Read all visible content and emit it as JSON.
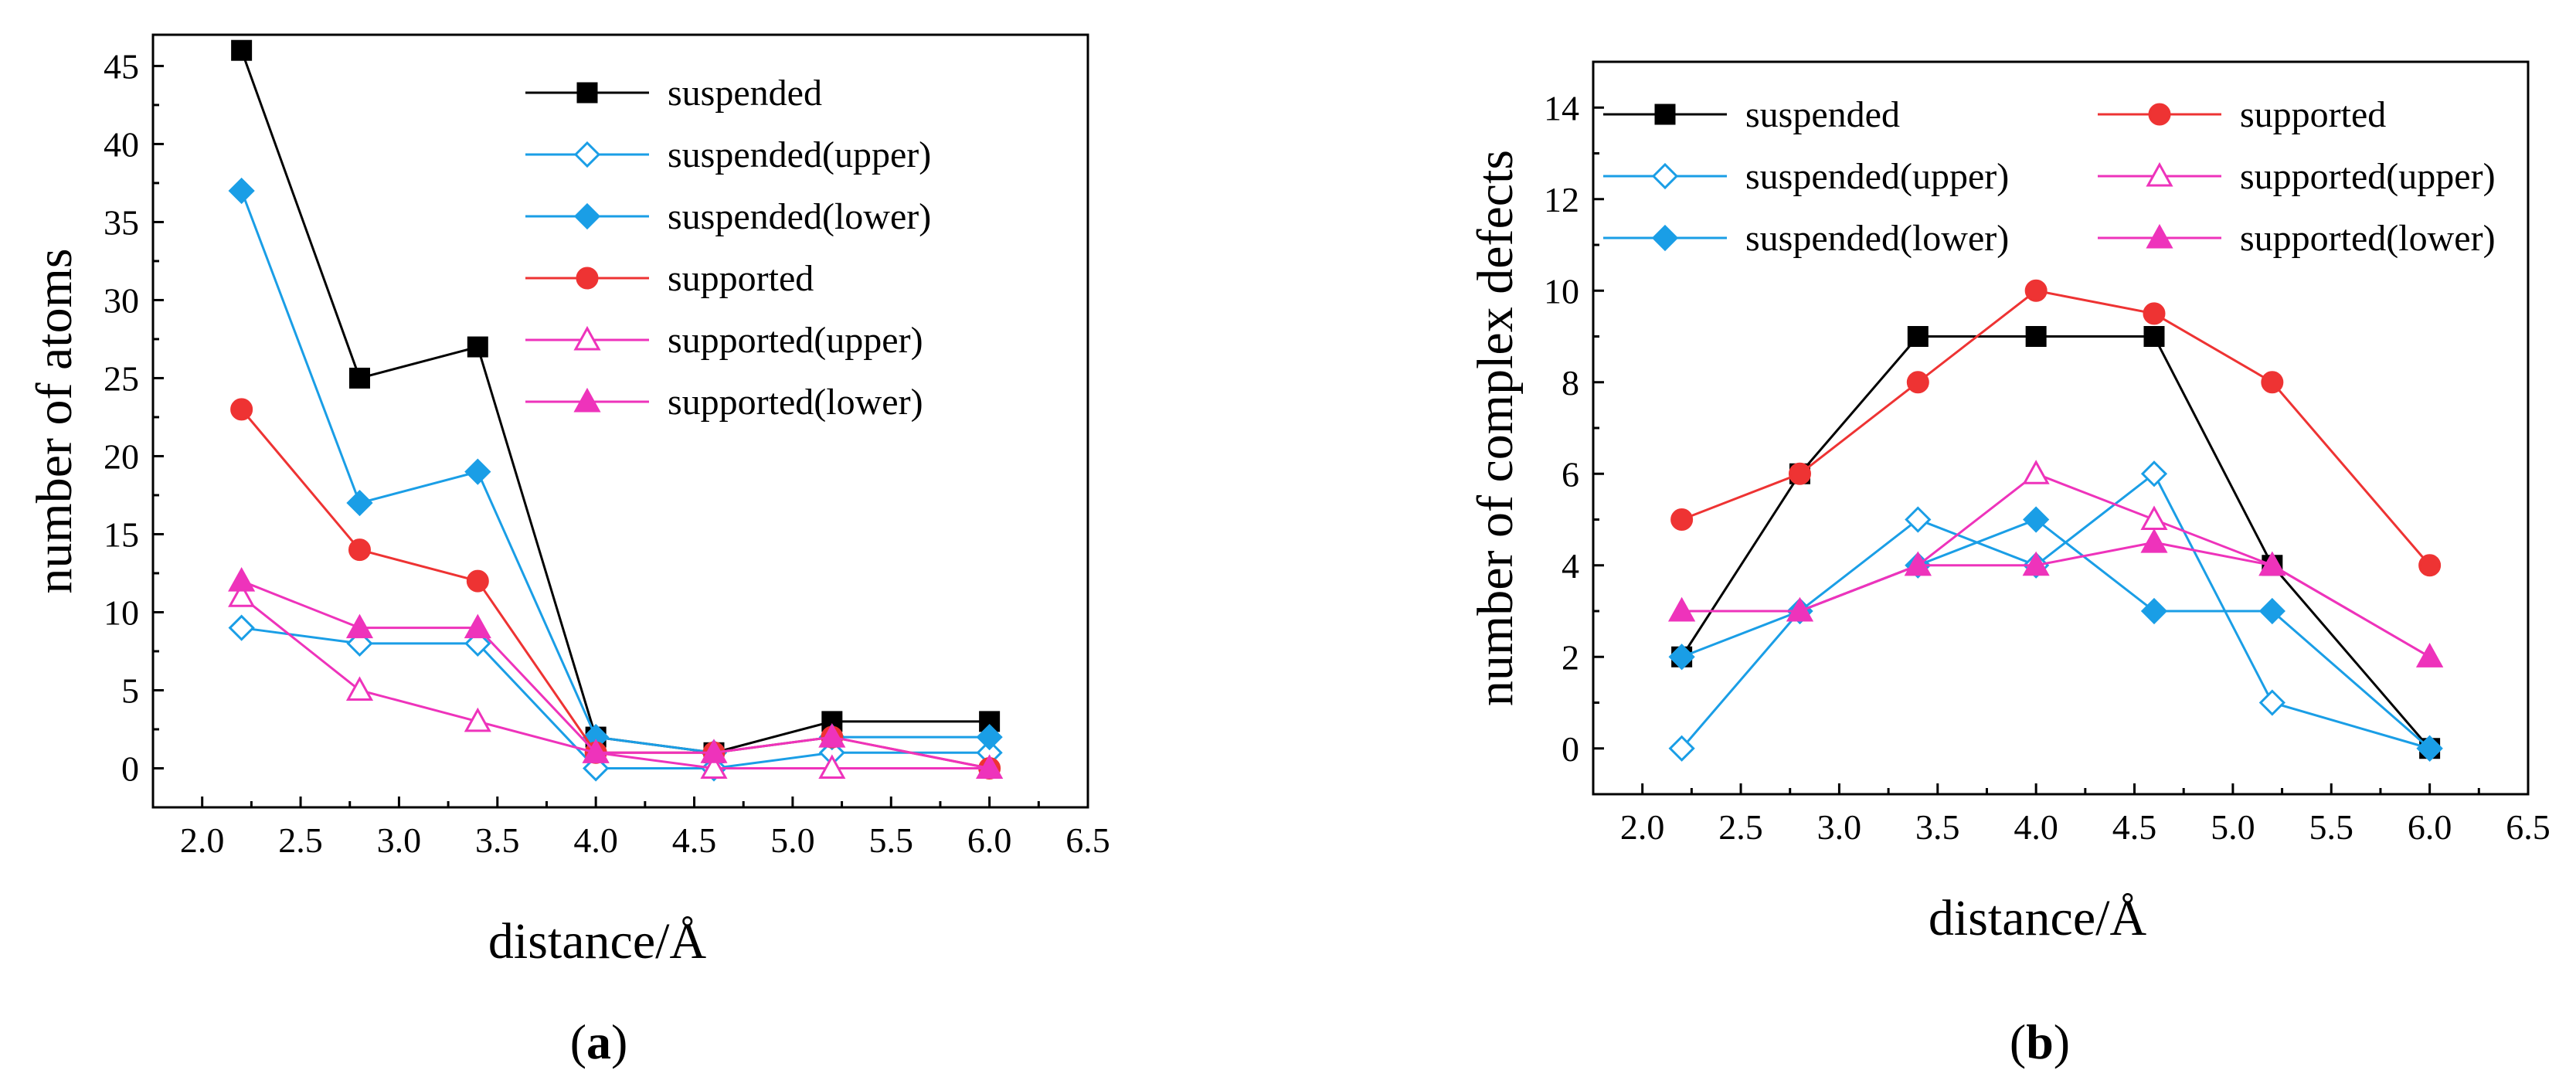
{
  "chart_data": [
    {
      "id": "a",
      "type": "line",
      "caption": "a",
      "xlabel": "distance/Å",
      "ylabel": "number of atoms",
      "xlim": [
        1.75,
        6.5
      ],
      "ylim": [
        -2.5,
        47
      ],
      "xticks": [
        2.0,
        2.5,
        3.0,
        3.5,
        4.0,
        4.5,
        5.0,
        5.5,
        6.0,
        6.5
      ],
      "xtick_labels": [
        "2.0",
        "2.5",
        "3.0",
        "3.5",
        "4.0",
        "4.5",
        "5.0",
        "5.5",
        "6.0",
        "6.5"
      ],
      "yticks": [
        0,
        5,
        10,
        15,
        20,
        25,
        30,
        35,
        40,
        45
      ],
      "ytick_labels": [
        "0",
        "5",
        "10",
        "15",
        "20",
        "25",
        "30",
        "35",
        "40",
        "45"
      ],
      "legend_position": "top-right",
      "legend_columns": 1,
      "x": [
        2.2,
        2.8,
        3.4,
        4.0,
        4.6,
        5.2,
        6.0
      ],
      "series": [
        {
          "name": "suspended",
          "color": "#000000",
          "marker": "square-filled",
          "values": [
            46,
            25,
            27,
            2,
            1,
            3,
            3
          ]
        },
        {
          "name": "suspended(upper)",
          "color": "#1a9ee6",
          "marker": "diamond-open",
          "values": [
            9,
            8,
            8,
            0,
            0,
            1,
            1
          ]
        },
        {
          "name": "suspended(lower)",
          "color": "#1a9ee6",
          "marker": "diamond-filled",
          "values": [
            37,
            17,
            19,
            2,
            1,
            2,
            2
          ]
        },
        {
          "name": "supported",
          "color": "#ee3333",
          "marker": "circle-filled",
          "values": [
            23,
            14,
            12,
            1,
            1,
            2,
            0
          ]
        },
        {
          "name": "supported(upper)",
          "color": "#ee33bb",
          "marker": "triangle-open",
          "values": [
            11,
            5,
            3,
            1,
            0,
            0,
            0
          ]
        },
        {
          "name": "supported(lower)",
          "color": "#ee33bb",
          "marker": "triangle-filled",
          "values": [
            12,
            9,
            9,
            1,
            1,
            2,
            0
          ]
        }
      ]
    },
    {
      "id": "b",
      "type": "line",
      "caption": "b",
      "xlabel": "distance/Å",
      "ylabel": "number of complex defects",
      "xlim": [
        1.75,
        6.5
      ],
      "ylim": [
        -1,
        15
      ],
      "xticks": [
        2.0,
        2.5,
        3.0,
        3.5,
        4.0,
        4.5,
        5.0,
        5.5,
        6.0,
        6.5
      ],
      "xtick_labels": [
        "2.0",
        "2.5",
        "3.0",
        "3.5",
        "4.0",
        "4.5",
        "5.0",
        "5.5",
        "6.0",
        "6.5"
      ],
      "yticks": [
        0,
        2,
        4,
        6,
        8,
        10,
        12,
        14
      ],
      "ytick_labels": [
        "0",
        "2",
        "4",
        "6",
        "8",
        "10",
        "12",
        "14"
      ],
      "legend_position": "top",
      "legend_columns": 2,
      "x": [
        2.2,
        2.8,
        3.4,
        4.0,
        4.6,
        5.2,
        6.0
      ],
      "series": [
        {
          "name": "suspended",
          "color": "#000000",
          "marker": "square-filled",
          "values": [
            2,
            6,
            9,
            9,
            9,
            4,
            0
          ]
        },
        {
          "name": "suspended(upper)",
          "color": "#1a9ee6",
          "marker": "diamond-open",
          "values": [
            0,
            3,
            5,
            4,
            6,
            1,
            0
          ]
        },
        {
          "name": "suspended(lower)",
          "color": "#1a9ee6",
          "marker": "diamond-filled",
          "values": [
            2,
            3,
            4,
            5,
            3,
            3,
            0
          ]
        },
        {
          "name": "supported",
          "color": "#ee3333",
          "marker": "circle-filled",
          "values": [
            5,
            6,
            8,
            10,
            9.5,
            8,
            4
          ]
        },
        {
          "name": "supported(upper)",
          "color": "#ee33bb",
          "marker": "triangle-open",
          "values": [
            3,
            3,
            4,
            6,
            5,
            4,
            2
          ]
        },
        {
          "name": "supported(lower)",
          "color": "#ee33bb",
          "marker": "triangle-filled",
          "values": [
            3,
            3,
            4,
            4,
            4.5,
            4,
            2
          ]
        }
      ]
    }
  ]
}
